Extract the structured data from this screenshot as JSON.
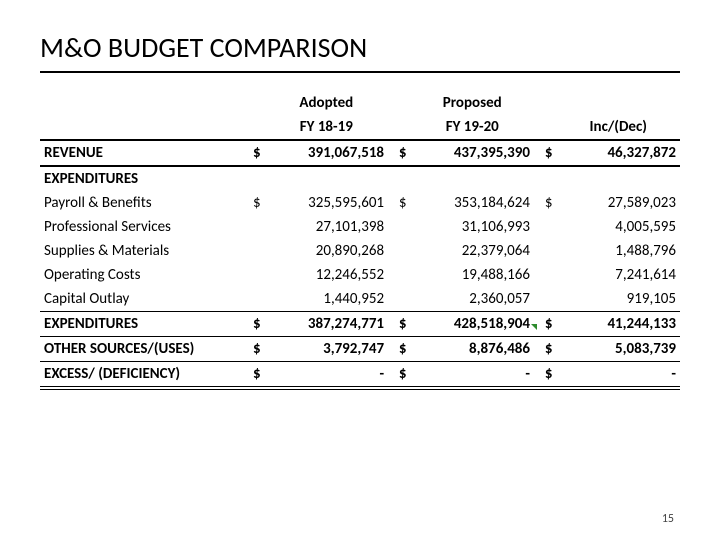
{
  "title": "M&O BUDGET COMPARISON",
  "pageNumber": "15",
  "columns": {
    "adopted_top": "Adopted",
    "adopted_bot": "FY 18-19",
    "proposed_top": "Proposed",
    "proposed_bot": "FY 19-20",
    "incdec": "Inc/(Dec)"
  },
  "rows": {
    "revenue": {
      "label": "REVENUE",
      "adopted": "391,067,518",
      "proposed": "437,395,390",
      "incdec": "46,327,872"
    },
    "expenditures_label": "EXPENDITURES",
    "payroll": {
      "label": "Payroll & Benefits",
      "adopted": "325,595,601",
      "proposed": "353,184,624",
      "incdec": "27,589,023"
    },
    "prof": {
      "label": "Professional Services",
      "adopted": "27,101,398",
      "proposed": "31,106,993",
      "incdec": "4,005,595"
    },
    "supplies": {
      "label": "Supplies & Materials",
      "adopted": "20,890,268",
      "proposed": "22,379,064",
      "incdec": "1,488,796"
    },
    "operating": {
      "label": "Operating Costs",
      "adopted": "12,246,552",
      "proposed": "19,488,166",
      "incdec": "7,241,614"
    },
    "capital": {
      "label": "Capital Outlay",
      "adopted": "1,440,952",
      "proposed": "2,360,057",
      "incdec": "919,105"
    },
    "exp_total": {
      "label": "EXPENDITURES",
      "adopted": "387,274,771",
      "proposed": "428,518,904",
      "incdec": "41,244,133"
    },
    "other": {
      "label": "OTHER SOURCES/(USES)",
      "adopted": "3,792,747",
      "proposed": "8,876,486",
      "incdec": "5,083,739"
    },
    "excess": {
      "label": "EXCESS/ (DEFICIENCY)",
      "adopted": "-",
      "proposed": "-",
      "incdec": "-"
    }
  },
  "dollar": "$",
  "style": {
    "font_family": "Calibri",
    "title_fontsize": 28,
    "body_fontsize": 15,
    "background_color": "#ffffff",
    "text_color": "#000000",
    "border_color": "#000000",
    "flag_color": "#2e8b2e"
  }
}
